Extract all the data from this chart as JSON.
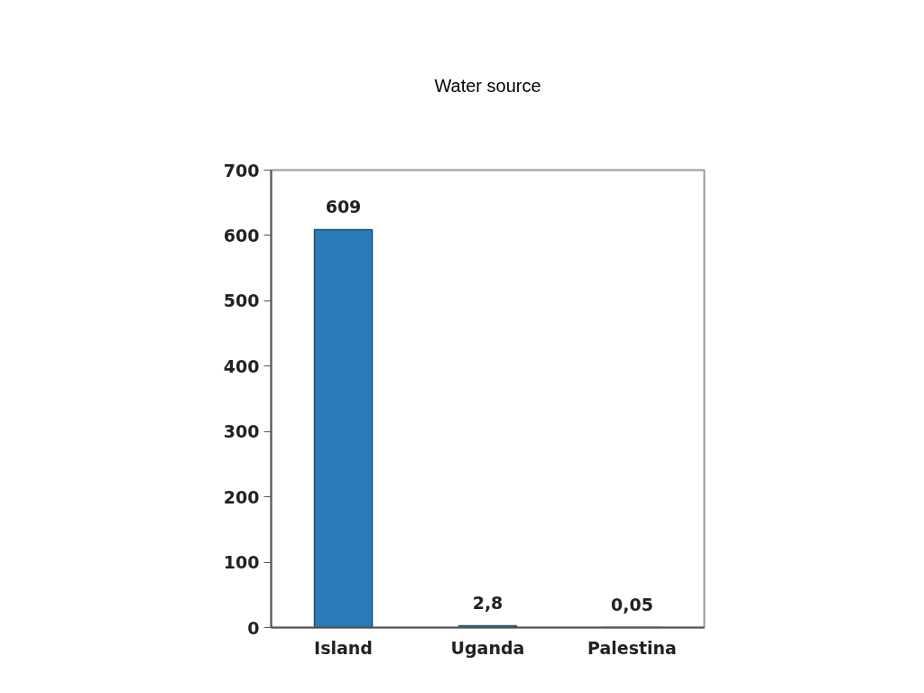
{
  "chart_data": {
    "type": "bar",
    "title": "Water source",
    "categories": [
      "Island",
      "Uganda",
      "Palestina"
    ],
    "values": [
      609,
      2.8,
      0.05
    ],
    "value_labels": [
      "609",
      "2,8",
      "0,05"
    ],
    "color": "#2b7bb9",
    "ylim": [
      0,
      700
    ],
    "yticks": [
      0,
      100,
      200,
      300,
      400,
      500,
      600,
      700
    ],
    "grid": false
  }
}
